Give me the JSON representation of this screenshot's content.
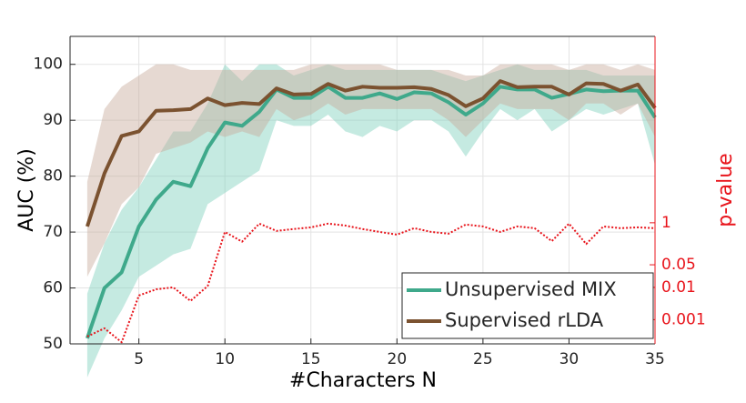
{
  "chart_data": {
    "type": "line",
    "xlabel": "#Characters N",
    "ylabel": "AUC (%)",
    "y2label": "p-value",
    "x": [
      2,
      3,
      4,
      5,
      6,
      7,
      8,
      9,
      10,
      11,
      12,
      13,
      14,
      15,
      16,
      17,
      18,
      19,
      20,
      21,
      22,
      23,
      24,
      25,
      26,
      27,
      28,
      29,
      30,
      31,
      32,
      33,
      34,
      35
    ],
    "xlim": [
      1,
      35
    ],
    "xticks": [
      5,
      10,
      15,
      20,
      25,
      30,
      35
    ],
    "ylim": [
      50,
      105
    ],
    "yticks": [
      50,
      60,
      70,
      80,
      90,
      100
    ],
    "y2lim": [
      0.000178,
      589000
    ],
    "y2ticks": [
      0.001,
      0.01,
      0.05,
      1
    ],
    "y2scale": "log",
    "y2color": "#e8141b",
    "grid": true,
    "legend": "lower right",
    "series": [
      {
        "name": "Unsupervised MIX",
        "color": "#3fa98b",
        "band_color": "#7fd1bd",
        "values": [
          51,
          60,
          62.8,
          71,
          75.8,
          79,
          78.2,
          85,
          89.6,
          89,
          91.5,
          95.5,
          94,
          94,
          96,
          94,
          94,
          94.8,
          93.8,
          95,
          94.8,
          93.2,
          91,
          93,
          96,
          95.5,
          95.5,
          94,
          94.7,
          95.5,
          95.2,
          95.3,
          95.3,
          90.5
        ],
        "lower": [
          44,
          51,
          56,
          62,
          64,
          66,
          67,
          75,
          77,
          79,
          81,
          90,
          89,
          89,
          91,
          88,
          87,
          89,
          88,
          90,
          90,
          88,
          83.5,
          88,
          92,
          90,
          92,
          88,
          90,
          92,
          91,
          92,
          93,
          82
        ],
        "upper": [
          59,
          68,
          74,
          78,
          83,
          88,
          88,
          93,
          100,
          97,
          100,
          100,
          98,
          99,
          100,
          99,
          99,
          99,
          99,
          99,
          99,
          98,
          97,
          98,
          99,
          100,
          99,
          99,
          99,
          99,
          98,
          98,
          98,
          98
        ]
      },
      {
        "name": "Supervised rLDA",
        "color": "#7b5230",
        "band_color": "#c7ab9c",
        "values": [
          71,
          80.5,
          87.2,
          88,
          91.7,
          91.8,
          92,
          93.9,
          92.7,
          93.1,
          92.9,
          95.7,
          94.6,
          94.7,
          96.5,
          95.3,
          96,
          95.8,
          95.8,
          95.9,
          95.6,
          94.5,
          92.5,
          93.9,
          97,
          95.9,
          96,
          96,
          94.6,
          96.6,
          96.5,
          95.3,
          96.4,
          92.2
        ],
        "lower": [
          62,
          68,
          75,
          78,
          84,
          85,
          86,
          88,
          87,
          88,
          87,
          92,
          90,
          91,
          93,
          91,
          92,
          92,
          92,
          92,
          92,
          90,
          87,
          90,
          93,
          92,
          92,
          92,
          90,
          93,
          93,
          91,
          93,
          87
        ],
        "upper": [
          79,
          92,
          96,
          98,
          100,
          100,
          99,
          99,
          99,
          99,
          99,
          99,
          99,
          100,
          100,
          100,
          100,
          100,
          99,
          99,
          99,
          99,
          98,
          98,
          100,
          100,
          100,
          100,
          99,
          100,
          100,
          99,
          100,
          99
        ]
      },
      {
        "axis": "y2",
        "color": "#e8141b",
        "style": "dotted",
        "values": [
          0.0003,
          0.00054,
          0.0002,
          0.0056,
          0.0087,
          0.01,
          0.0038,
          0.011,
          0.52,
          0.26,
          0.94,
          0.56,
          0.64,
          0.72,
          0.94,
          0.82,
          0.64,
          0.52,
          0.43,
          0.68,
          0.52,
          0.46,
          0.88,
          0.77,
          0.52,
          0.77,
          0.68,
          0.27,
          0.94,
          0.22,
          0.77,
          0.68,
          0.72,
          0.68
        ]
      }
    ]
  }
}
